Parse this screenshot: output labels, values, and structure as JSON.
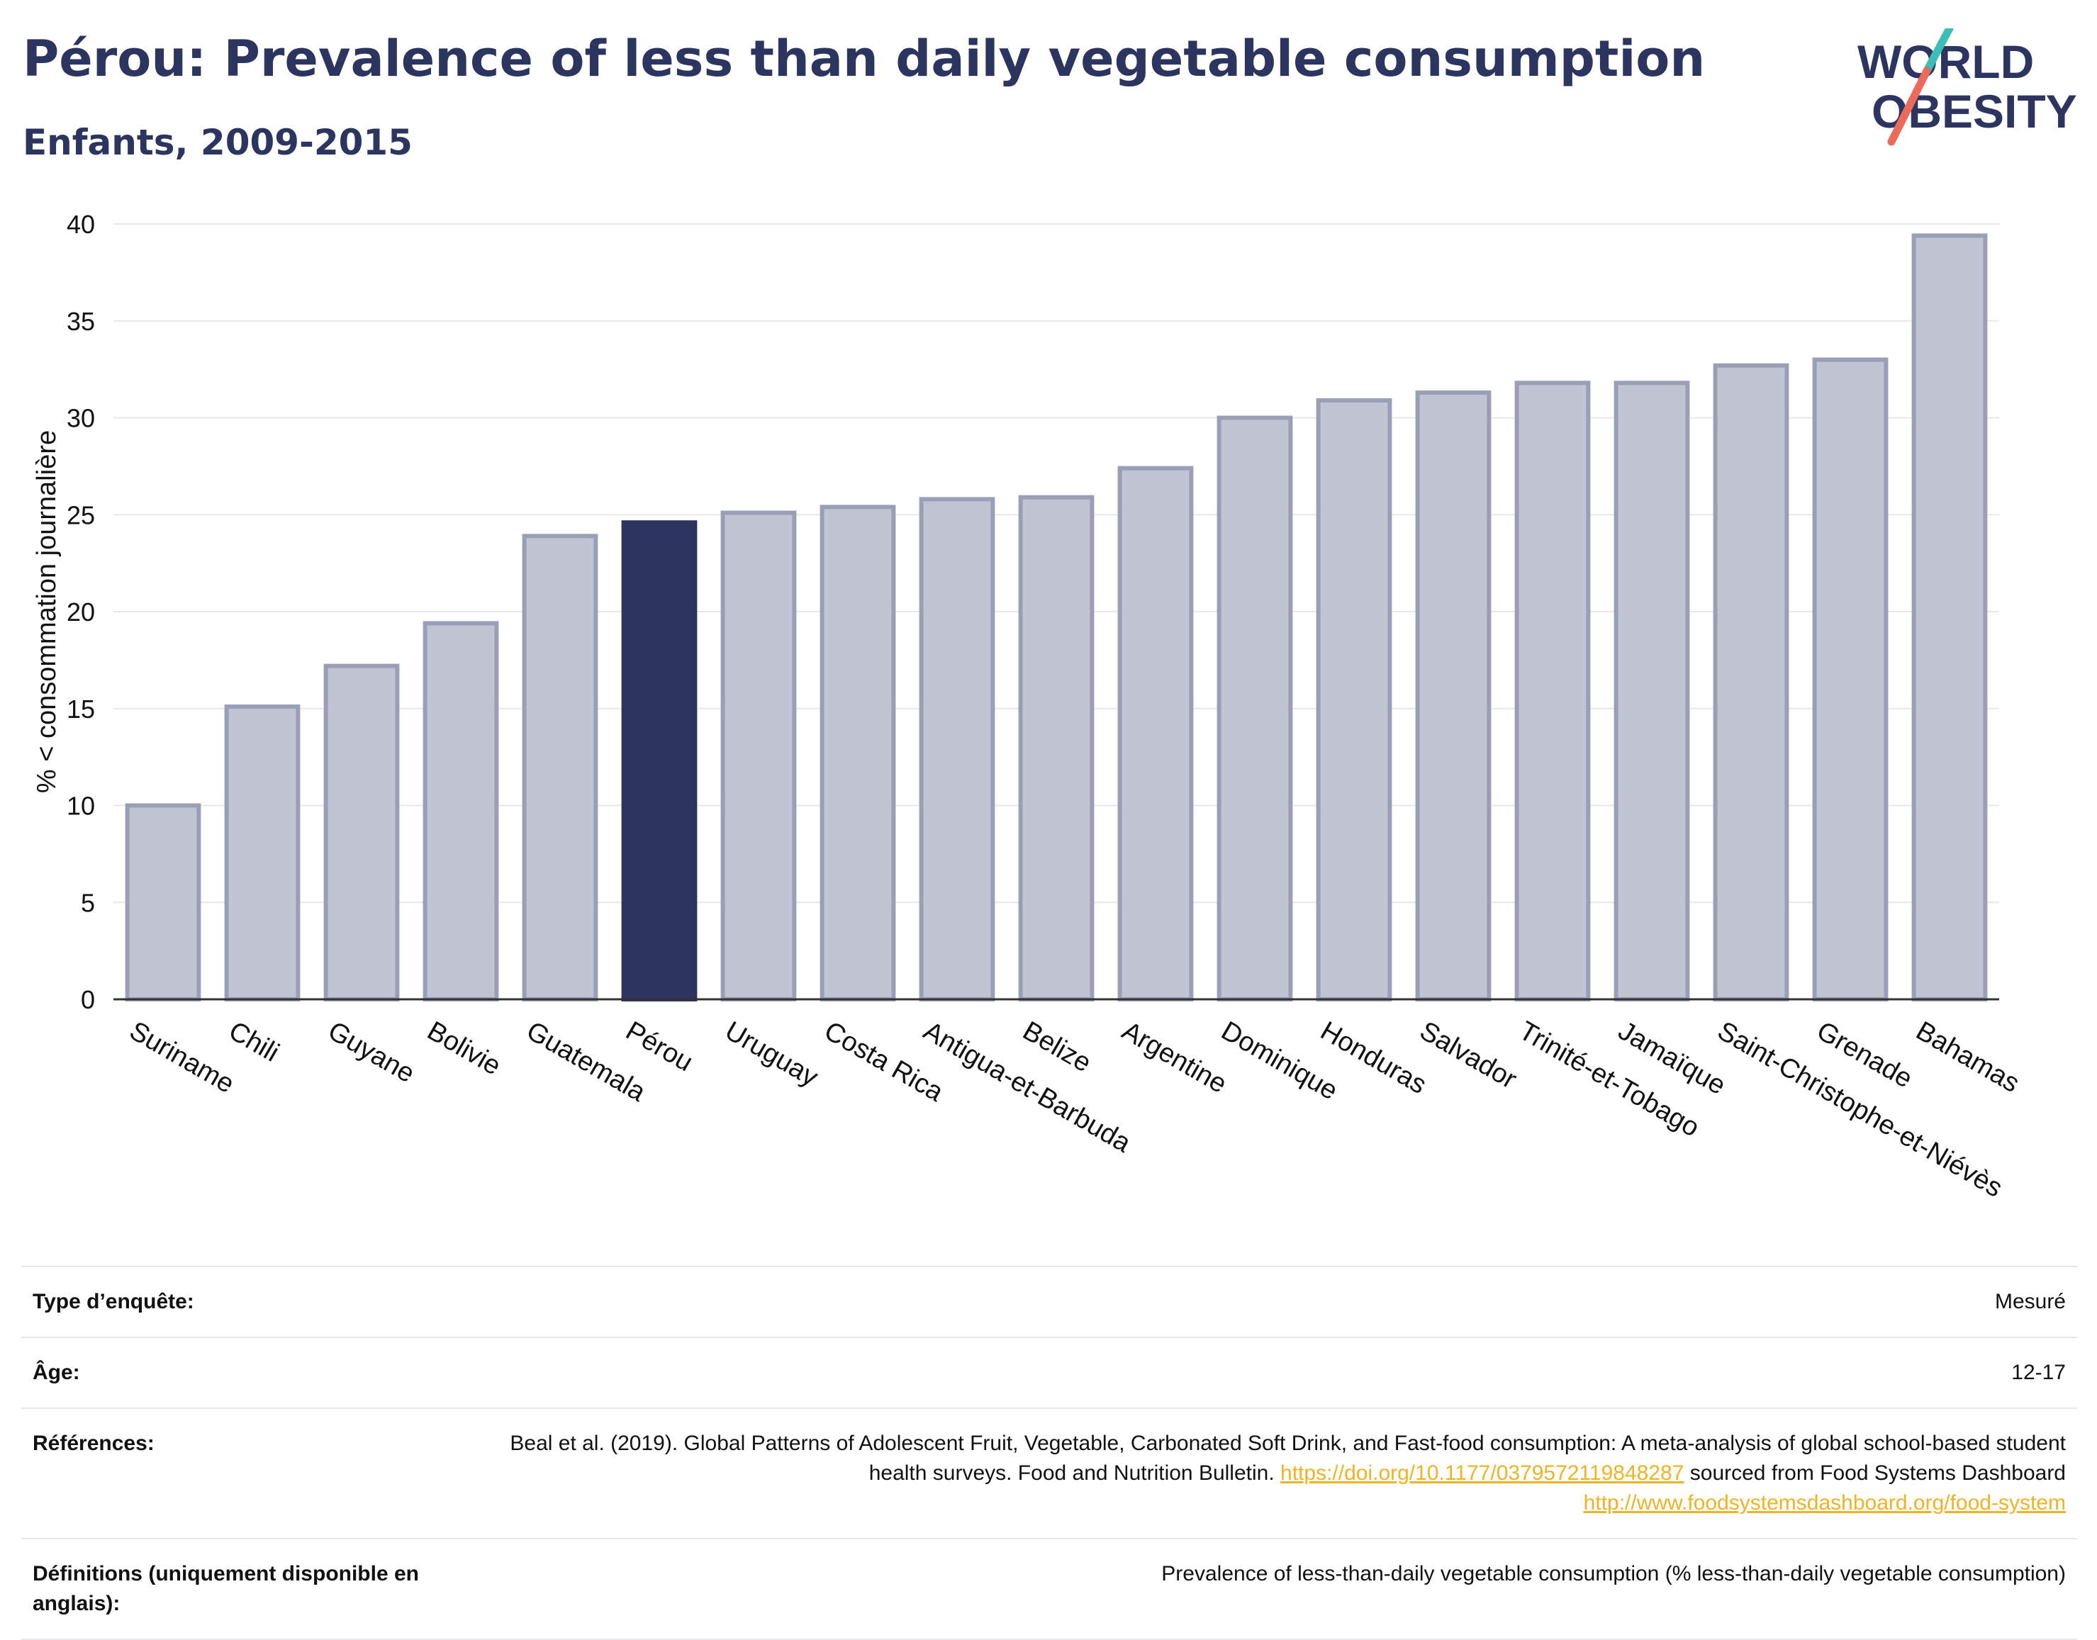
{
  "header": {
    "title": "Pérou: Prevalence of less than daily vegetable consumption",
    "subtitle": "Enfants, 2009-2015"
  },
  "logo": {
    "line1": "WORLD",
    "line2": "OBESITY"
  },
  "colors": {
    "highlight": "#2b3560",
    "bar_fill": "#c0c3d1",
    "bar_stroke": "#9a9fb8",
    "text": "#2b3560",
    "grid": "#e8e8e8",
    "link": "#f0b323",
    "logo_teal": "#3cbdb5",
    "logo_coral": "#ea6b5c"
  },
  "chart_data": {
    "type": "bar",
    "title": "Pérou: Prevalence of less than daily vegetable consumption",
    "subtitle": "Enfants, 2009-2015",
    "xlabel": "",
    "ylabel": "% < consommation journalière",
    "ylim": [
      0,
      40
    ],
    "yticks": [
      0,
      5,
      10,
      15,
      20,
      25,
      30,
      35,
      40
    ],
    "grid": true,
    "highlight": "Pérou",
    "categories": [
      "Suriname",
      "Chili",
      "Guyane",
      "Bolivie",
      "Guatemala",
      "Pérou",
      "Uruguay",
      "Costa Rica",
      "Antigua-et-Barbuda",
      "Belize",
      "Argentine",
      "Dominique",
      "Honduras",
      "Salvador",
      "Trinité-et-Tobago",
      "Jamaïque",
      "Saint-Christophe-et-Niévès",
      "Grenade",
      "Bahamas"
    ],
    "values": [
      10.0,
      15.1,
      17.2,
      19.4,
      23.9,
      24.6,
      25.1,
      25.4,
      25.8,
      25.9,
      27.4,
      30.0,
      30.9,
      31.3,
      31.8,
      31.8,
      32.7,
      33.0,
      39.4
    ]
  },
  "info_table": [
    {
      "label": "Type d’enquête:",
      "value": "Mesuré"
    },
    {
      "label": "Âge:",
      "value": "12-17"
    },
    {
      "label": "Références:",
      "value_text_1": "Beal et al. (2019). Global Patterns of Adolescent Fruit, Vegetable, Carbonated Soft Drink, and Fast-food consumption: A meta-analysis of global school-based student health surveys. Food and Nutrition Bulletin.",
      "link_1": "https://doi.org/10.1177/0379572119848287",
      "value_text_2": "sourced from Food Systems Dashboard",
      "link_2": "http://www.foodsystemsdashboard.org/food-system"
    },
    {
      "label": "Définitions (uniquement disponible en anglais):",
      "value": "Prevalence of less-than-daily vegetable consumption (% less-than-daily vegetable consumption)"
    }
  ]
}
